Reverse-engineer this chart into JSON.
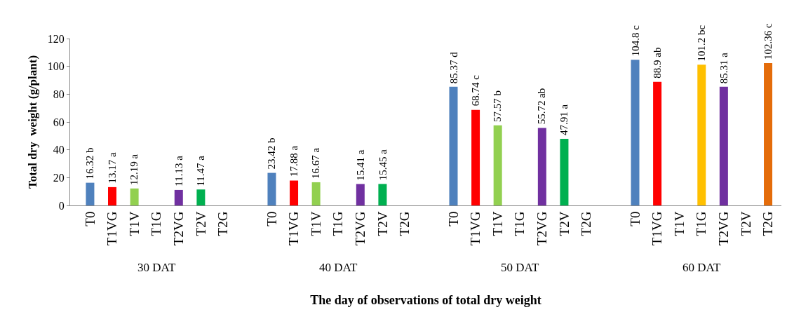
{
  "chart_data": {
    "type": "bar",
    "xlabel": "The day of observations of total dry weight",
    "ylabel": "Total dry  weight (g/plant)",
    "categories": [
      "T0",
      "T1VG",
      "T1V",
      "T1G",
      "T2VG",
      "T2V",
      "T2G",
      "T0",
      "T1VG",
      "T1V",
      "T1G",
      "T2VG",
      "T2V",
      "T2G",
      "T0",
      "T1VG",
      "T1V",
      "T1G",
      "T2VG",
      "T2V",
      "T2G",
      "T0",
      "T1VG",
      "T1V",
      "T1G",
      "T2VG",
      "T2V",
      "T2G"
    ],
    "values": [
      16.32,
      13.17,
      12.19,
      null,
      11.13,
      11.47,
      null,
      23.42,
      17.88,
      16.67,
      null,
      15.41,
      15.45,
      null,
      85.37,
      68.74,
      57.57,
      null,
      55.72,
      47.91,
      null,
      104.8,
      88.9,
      null,
      101.2,
      85.31,
      null,
      102.36
    ],
    "value_labels": [
      "16.32 b",
      "13.17 a",
      "12.19 a",
      null,
      "11.13 a",
      "11.47 a",
      null,
      "23.42 b",
      "17.88 a",
      "16.67 a",
      null,
      "15.41 a",
      "15.45 a",
      null,
      "85.37 d",
      "68.74 c",
      "57.57 b",
      null,
      "55.72 ab",
      "47.91 a",
      null,
      "104.8 c",
      "88.9 ab",
      null,
      "101.2 bc",
      "85.31 a",
      null,
      "102.36 c"
    ],
    "colors": [
      "#4f81bd",
      "#ff0000",
      "#92d050",
      "#ffc000",
      "#7030a0",
      "#00b050",
      "#e46c0a",
      "#4f81bd",
      "#ff0000",
      "#92d050",
      "#ffc000",
      "#7030a0",
      "#00b050",
      "#e46c0a",
      "#4f81bd",
      "#ff0000",
      "#92d050",
      "#ffc000",
      "#7030a0",
      "#00b050",
      "#e46c0a",
      "#4f81bd",
      "#ff0000",
      "#92d050",
      "#ffc000",
      "#7030a0",
      "#00b050",
      "#e46c0a"
    ],
    "annotations": [
      "30 DAT",
      "40 DAT",
      "50 DAT",
      "60 DAT"
    ],
    "ylim": [
      0,
      120
    ],
    "yticks": [
      0,
      20,
      40,
      60,
      80,
      100,
      120
    ],
    "grid": false
  }
}
